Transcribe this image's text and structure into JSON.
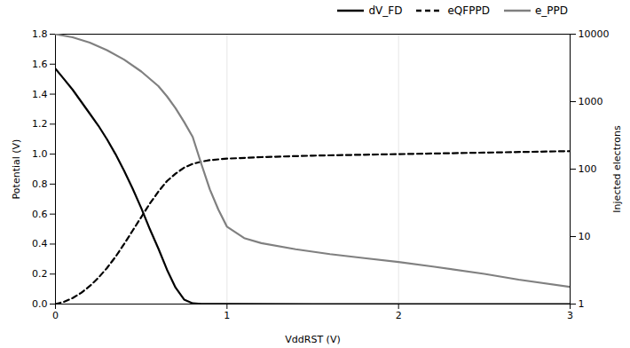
{
  "chart_data": {
    "type": "line",
    "xlabel": "VddRST (V)",
    "ylabel": "Potential (V)",
    "y2label": "Injected electrons",
    "xlim": [
      0,
      3
    ],
    "xticks": [
      0,
      1,
      2,
      3
    ],
    "ylim": [
      0,
      1.8
    ],
    "yticks": [
      {
        "value": 0,
        "label": "0.0"
      },
      0.2,
      0.4,
      0.6,
      0.8,
      {
        "value": 1.0,
        "label": "1.0"
      },
      1.2,
      1.4,
      1.6,
      1.8
    ],
    "y2lim": [
      1,
      10000
    ],
    "y2ticks": [
      1,
      10,
      100,
      1000,
      10000
    ],
    "log": "y2",
    "grid": true,
    "legend": "upper right",
    "series": [
      {
        "name": "dV_FD",
        "color": "black",
        "line_style": "solid",
        "x": [
          0.0,
          0.05,
          0.1,
          0.15,
          0.2,
          0.25,
          0.3,
          0.35,
          0.4,
          0.45,
          0.5,
          0.55,
          0.6,
          0.65,
          0.7,
          0.75,
          0.8,
          0.85,
          0.9,
          1.0,
          1.5,
          2.0,
          3.0
        ],
        "values": [
          1.57,
          1.5,
          1.43,
          1.35,
          1.27,
          1.19,
          1.1,
          1.0,
          0.89,
          0.77,
          0.64,
          0.5,
          0.37,
          0.23,
          0.11,
          0.03,
          0.005,
          0.001,
          0.0005,
          0.0002,
          0.0001,
          0.0001,
          0.0001
        ]
      },
      {
        "name": "eQFPPD",
        "color": "black",
        "line_style": "dashed",
        "x": [
          0.0,
          0.05,
          0.1,
          0.15,
          0.2,
          0.25,
          0.3,
          0.35,
          0.4,
          0.45,
          0.5,
          0.55,
          0.6,
          0.65,
          0.7,
          0.75,
          0.8,
          0.85,
          0.9,
          1.0,
          1.2,
          1.5,
          2.0,
          2.5,
          3.0
        ],
        "values": [
          0.0,
          0.015,
          0.04,
          0.075,
          0.12,
          0.175,
          0.24,
          0.315,
          0.4,
          0.49,
          0.58,
          0.67,
          0.75,
          0.82,
          0.87,
          0.91,
          0.935,
          0.95,
          0.96,
          0.97,
          0.98,
          0.99,
          1.0,
          1.01,
          1.02
        ]
      },
      {
        "name": "e_PPD",
        "color": "gray",
        "line_style": "solid",
        "axis": "y2",
        "x": [
          0.0,
          0.1,
          0.2,
          0.3,
          0.4,
          0.5,
          0.6,
          0.65,
          0.7,
          0.75,
          0.8,
          0.85,
          0.9,
          0.95,
          1.0,
          1.1,
          1.2,
          1.4,
          1.6,
          1.8,
          2.0,
          2.2,
          2.5,
          2.7,
          3.0
        ],
        "values": [
          10000,
          9000,
          7500,
          5800,
          4200,
          2800,
          1700,
          1200,
          800,
          500,
          300,
          120,
          50,
          25,
          14,
          9.5,
          8.0,
          6.5,
          5.5,
          4.8,
          4.2,
          3.6,
          2.8,
          2.3,
          1.8
        ]
      }
    ]
  }
}
